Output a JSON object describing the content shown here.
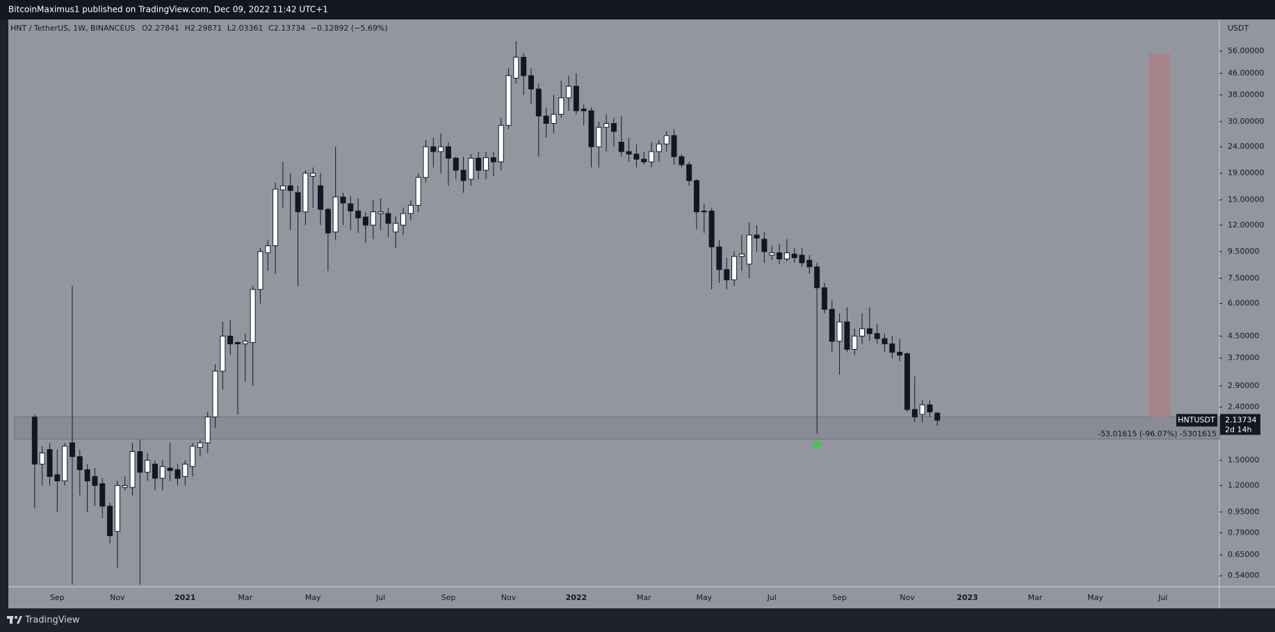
{
  "top_bar": {
    "publisher": "BitcoinMaximus1 published on TradingView.com, Dec 09, 2022 11:42 UTC+1"
  },
  "footer": {
    "brand": "TradingView"
  },
  "chart_data": {
    "type": "candlestick",
    "symbol": "HNT / TetherUS, 1W, BINANCEUS",
    "ohlc_letters": [
      "O",
      "H",
      "L",
      "C"
    ],
    "change": "−0.12892 (−5.69%)",
    "currency": "USDT",
    "countdown": "2d 14h",
    "log": true,
    "grid": false,
    "ylim": [
      0.49,
      74
    ],
    "yticks": [
      {
        "value": 56,
        "label": "56.00000"
      },
      {
        "value": 46,
        "label": "46.00000"
      },
      {
        "value": 38,
        "label": "38.00000"
      },
      {
        "value": 30,
        "label": "30.00000"
      },
      {
        "value": 24,
        "label": "24.00000"
      },
      {
        "value": 19,
        "label": "19.00000"
      },
      {
        "value": 15,
        "label": "15.00000"
      },
      {
        "value": 12,
        "label": "12.00000"
      },
      {
        "value": 9.5,
        "label": "9.50000"
      },
      {
        "value": 7.5,
        "label": "7.50000"
      },
      {
        "value": 6,
        "label": "6.00000"
      },
      {
        "value": 4.5,
        "label": "4.50000"
      },
      {
        "value": 3.7,
        "label": "3.70000"
      },
      {
        "value": 2.9,
        "label": "2.90000"
      },
      {
        "value": 2.4,
        "label": "2.40000"
      },
      {
        "value": 1.5,
        "label": "1.50000"
      },
      {
        "value": 1.2,
        "label": "1.20000"
      },
      {
        "value": 0.95,
        "label": "0.95000"
      },
      {
        "value": 0.79,
        "label": "0.79000"
      },
      {
        "value": 0.65,
        "label": "0.65000"
      },
      {
        "value": 0.54,
        "label": "0.54000"
      }
    ],
    "categories": [
      null,
      null,
      null,
      null,
      null,
      null,
      "Sep",
      null,
      null,
      null,
      null,
      null,
      null,
      null,
      "Nov",
      null,
      null,
      null,
      null,
      null,
      null,
      null,
      null,
      "2021",
      null,
      null,
      null,
      null,
      null,
      null,
      null,
      "Mar",
      null,
      null,
      null,
      null,
      null,
      null,
      null,
      null,
      "May",
      null,
      null,
      null,
      null,
      null,
      null,
      null,
      null,
      "Jul",
      null,
      null,
      null,
      null,
      null,
      null,
      null,
      null,
      "Sep",
      null,
      null,
      null,
      null,
      null,
      null,
      null,
      "Nov",
      null,
      null,
      null,
      null,
      null,
      null,
      null,
      null,
      "2022",
      null,
      null,
      null,
      null,
      null,
      null,
      null,
      null,
      "Mar",
      null,
      null,
      null,
      null,
      null,
      null,
      null,
      "May",
      null,
      null,
      null,
      null,
      null,
      null,
      null,
      null,
      "Jul",
      null,
      null,
      null,
      null,
      null,
      null,
      null,
      null,
      "Sep",
      null,
      null,
      null,
      null,
      null,
      null,
      null,
      null,
      "Nov",
      null,
      null,
      null,
      null,
      null,
      null,
      null,
      "2023",
      null,
      null,
      null,
      null,
      null,
      null,
      null,
      null,
      "Mar",
      null,
      null,
      null,
      null,
      null,
      null,
      null,
      "May",
      null,
      null,
      null,
      null,
      null,
      null,
      null,
      null,
      "Jul",
      null,
      null,
      null,
      null,
      null,
      null,
      null
    ],
    "series": [
      {
        "name": "HNTUSDT",
        "up_color": "#ffffff",
        "down_color": "#131722",
        "open": [
          null,
          null,
          null,
          2.2,
          1.45,
          1.65,
          1.32,
          1.25,
          1.75,
          1.55,
          1.38,
          1.3,
          1.22,
          1.0,
          0.8,
          1.18,
          1.18,
          1.62,
          1.35,
          1.45,
          1.28,
          1.4,
          1.38,
          1.3,
          1.42,
          1.68,
          1.75,
          2.2,
          3.3,
          4.5,
          4.25,
          4.2,
          4.25,
          6.8,
          9.4,
          10.0,
          16.4,
          17.0,
          16,
          13.5,
          18.5,
          17,
          13.8,
          11.3,
          15.4,
          14.5,
          13.6,
          12.9,
          12.0,
          13.3,
          13.3,
          11.3,
          12,
          13.3,
          14.3,
          18.3,
          24,
          23,
          24,
          21.7,
          19.5,
          18,
          21.7,
          19.5,
          21.8,
          21,
          29,
          44,
          53,
          45,
          40,
          31.5,
          29.5,
          32,
          37,
          41,
          33.5,
          33,
          24,
          28.5,
          29.5,
          25,
          23,
          22.5,
          21.5,
          21,
          23,
          24.6,
          26.5,
          22,
          20.5,
          17.8,
          13.6,
          13.6,
          9.9,
          8.1,
          7.4,
          9.1,
          8.5,
          11.0,
          10.6,
          9.2,
          9.4,
          8.9,
          9.3,
          9.2,
          8.8,
          8.3,
          6.9,
          5.7,
          4.3,
          5.1,
          4.0,
          4.5,
          4.8,
          4.6,
          4.4,
          4.2,
          3.9,
          3.85,
          2.35,
          2.25,
          2.45,
          2.27841,
          null,
          null,
          null,
          null,
          null,
          null,
          null,
          null,
          null,
          null,
          null,
          null,
          null,
          null,
          null,
          null,
          null,
          null,
          null,
          null,
          null,
          null,
          null,
          null,
          null,
          null,
          null,
          null,
          null,
          null,
          null,
          null,
          null,
          null,
          null,
          null,
          null
        ],
        "high": [
          null,
          null,
          null,
          2.25,
          1.7,
          1.75,
          1.65,
          1.75,
          7.0,
          1.65,
          1.45,
          1.4,
          1.28,
          1.03,
          1.25,
          1.3,
          1.75,
          1.8,
          1.6,
          1.5,
          1.5,
          1.75,
          1.45,
          1.5,
          1.75,
          1.8,
          2.3,
          3.5,
          5.1,
          5.2,
          4.3,
          4.6,
          7.0,
          9.8,
          10.5,
          17.5,
          21,
          19,
          17,
          19.5,
          20,
          19,
          14,
          24,
          16,
          15.5,
          15.2,
          13.5,
          15,
          15.2,
          14,
          13,
          14,
          15,
          19,
          25.5,
          26,
          27,
          25,
          22,
          22,
          22.5,
          23,
          23,
          23,
          31,
          48,
          61,
          55,
          48,
          42,
          34,
          38,
          43,
          45,
          46,
          35,
          34,
          30,
          32,
          31,
          31.5,
          26,
          24.5,
          23,
          25,
          25.5,
          27.5,
          28,
          22.5,
          21,
          18,
          14.5,
          14,
          10.5,
          9,
          9.5,
          11,
          12.3,
          12,
          11.3,
          10,
          10.2,
          10.6,
          9.8,
          9.8,
          9.2,
          8.6,
          7.2,
          6.2,
          5.5,
          5.8,
          4.8,
          5.5,
          5.8,
          5.0,
          4.6,
          4.5,
          4.4,
          3.9,
          3.15,
          2.55,
          2.55,
          2.29871,
          null,
          null,
          null,
          null,
          null,
          null,
          null,
          null,
          null,
          null,
          null,
          null,
          null,
          null,
          null,
          null,
          null,
          null,
          null,
          null,
          null,
          null,
          null,
          null,
          null,
          null,
          null,
          null,
          null,
          null,
          null,
          null,
          null,
          null,
          null,
          null,
          null
        ],
        "low": [
          null,
          null,
          null,
          0.98,
          1.2,
          1.2,
          0.95,
          1.2,
          0.5,
          1.1,
          0.95,
          1.0,
          0.9,
          0.72,
          0.58,
          1.15,
          1.1,
          0.5,
          1.25,
          1.15,
          1.15,
          1.25,
          1.2,
          1.2,
          1.3,
          1.55,
          1.6,
          2.0,
          2.8,
          3.8,
          2.25,
          3.0,
          2.9,
          6.0,
          8.0,
          7.8,
          14,
          11.5,
          7.0,
          12,
          14,
          12,
          8.0,
          10.5,
          12,
          11.5,
          11.2,
          10.3,
          10.6,
          11.5,
          10.8,
          9.8,
          11,
          12.5,
          13.5,
          17.5,
          20,
          19,
          17,
          18,
          16,
          17,
          18,
          18,
          18.5,
          19.5,
          28,
          42,
          38,
          35,
          22,
          26,
          27,
          31,
          33,
          32,
          29,
          20,
          20,
          23,
          24,
          22,
          21,
          20,
          20.5,
          20,
          21,
          23,
          20.5,
          20,
          17,
          11.6,
          11.2,
          6.8,
          7.2,
          6.8,
          7.0,
          8.0,
          7.5,
          9.5,
          8.6,
          8.8,
          8.5,
          8.7,
          8.6,
          8.3,
          7.8,
          1.9,
          5.5,
          3.9,
          3.2,
          3.9,
          3.8,
          4.2,
          4.3,
          4.2,
          3.9,
          3.7,
          3.6,
          2.3,
          2.1,
          2.1,
          2.2,
          2.03361,
          null,
          null,
          null,
          null,
          null,
          null,
          null,
          null,
          null,
          null,
          null,
          null,
          null,
          null,
          null,
          null,
          null,
          null,
          null,
          null,
          null,
          null,
          null,
          null,
          null,
          null,
          null,
          null,
          null,
          null,
          null,
          null,
          null,
          null,
          null,
          null,
          null
        ],
        "close": [
          null,
          null,
          null,
          1.45,
          1.6,
          1.3,
          1.25,
          1.7,
          1.55,
          1.38,
          1.25,
          1.2,
          1.0,
          0.77,
          1.2,
          1.2,
          1.62,
          1.35,
          1.5,
          1.28,
          1.42,
          1.37,
          1.28,
          1.45,
          1.7,
          1.75,
          2.2,
          3.3,
          4.5,
          4.2,
          4.2,
          4.3,
          6.8,
          9.5,
          10.0,
          16.5,
          17.0,
          16.3,
          13.5,
          19.0,
          19.0,
          13.8,
          11.2,
          15.4,
          14.6,
          13.6,
          12.8,
          12.0,
          13.5,
          13.5,
          12.2,
          12.2,
          13.3,
          14.3,
          18.3,
          24.0,
          23,
          24,
          21.7,
          19.5,
          17.8,
          21.7,
          19.5,
          21.8,
          21,
          29,
          45,
          53,
          45,
          40,
          31.5,
          29.5,
          32,
          37,
          41,
          33,
          33,
          24,
          28.5,
          29.5,
          27.5,
          23,
          22.5,
          21.5,
          21,
          23,
          24.6,
          26.5,
          22,
          20.5,
          17.8,
          13.5,
          13.5,
          9.9,
          8.1,
          7.4,
          9.1,
          9.3,
          11.0,
          10.7,
          9.5,
          9.4,
          8.9,
          9.4,
          9.0,
          8.6,
          8.3,
          6.9,
          5.7,
          4.3,
          5.1,
          4.0,
          4.5,
          4.8,
          4.6,
          4.4,
          4.2,
          3.9,
          3.8,
          2.35,
          2.2,
          2.45,
          2.3,
          2.13734,
          null,
          null,
          null,
          null,
          null,
          null,
          null,
          null,
          null,
          null,
          null,
          null,
          null,
          null,
          null,
          null,
          null,
          null,
          null,
          null,
          null,
          null,
          null,
          null,
          null,
          null,
          null,
          null,
          null,
          null,
          null,
          null,
          null,
          null,
          null,
          null,
          null
        ]
      }
    ],
    "annotations": {
      "support_zone": {
        "low": 1.81,
        "high": 2.2,
        "color": "#80838c"
      },
      "target_box": {
        "low": 2.2,
        "high": 54.8,
        "color": "#a7848b"
      },
      "measure_label": "-53.01615 (-96.07%) -5301615",
      "signal_color": "#22dd22"
    }
  }
}
